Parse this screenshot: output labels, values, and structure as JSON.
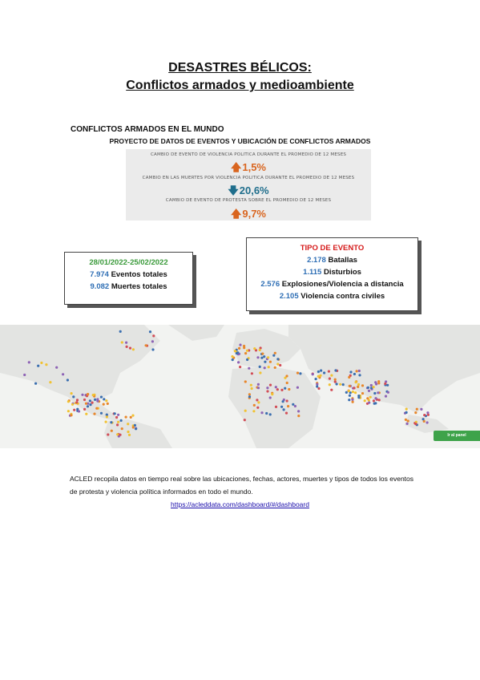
{
  "header": {
    "title": "DESASTRES BÉLICOS:",
    "subtitle": "Conflictos armados y medioambiente"
  },
  "section": {
    "heading": "CONFLICTOS ARMADOS EN EL MUNDO",
    "subheading": "PROYECTO DE DATOS DE EVENTOS Y UBICACIÓN DE CONFLICTOS ARMADOS"
  },
  "stats": [
    {
      "label": "CAMBIO DE EVENTO DE VIOLENCIA POLÍTICA DURANTE EL PROMEDIO DE 12 MESES",
      "value": "1,5%",
      "direction": "up",
      "color": "#d9651f"
    },
    {
      "label": "CAMBIO EN LAS MUERTES POR VIOLENCIA POLÍTICA DURANTE EL PROMEDIO DE 12 MESES",
      "value": "20,6%",
      "direction": "down",
      "color": "#1f6e8c"
    },
    {
      "label": "CAMBIO DE EVENTO DE PROTESTA SOBRE EL PROMEDIO DE 12 MESES",
      "value": "9,7%",
      "direction": "up",
      "color": "#d9651f"
    }
  ],
  "totals": {
    "date_range": "28/01/2022-25/02/2022",
    "events_value": "7.974",
    "events_label": "Eventos totales",
    "deaths_value": "9.082",
    "deaths_label": "Muertes totales"
  },
  "event_types": {
    "title": "TIPO DE EVENTO",
    "items": [
      {
        "value": "2.178",
        "label": "Batallas"
      },
      {
        "value": "1.115",
        "label": "Disturbios"
      },
      {
        "value": "2.576",
        "label": "Explosiones/Violencia a distancia"
      },
      {
        "value": "2.105",
        "label": "Violencia contra civiles"
      }
    ]
  },
  "map": {
    "button_label": "Ir al panel",
    "colors": {
      "land": "#e3e4e2",
      "water": "#f2f3f1",
      "blue": "#3b6fb0",
      "orange": "#e8872b",
      "yellow": "#f1c232",
      "red": "#d24d57",
      "purple": "#8e63b5"
    }
  },
  "footer": {
    "paragraph": "ACLED recopila datos en tiempo real sobre las ubicaciones, fechas, actores, muertes y tipos de todos los eventos de protesta y violencia política informados en todo el mundo.",
    "link": "https://acleddata.com/dashboard/#/dashboard"
  },
  "colors": {
    "accent_orange": "#d9651f",
    "accent_blue": "#1f6e8c",
    "number_blue": "#2f6fb5",
    "date_green": "#3a9a3a",
    "title_red": "#d61b1b"
  }
}
